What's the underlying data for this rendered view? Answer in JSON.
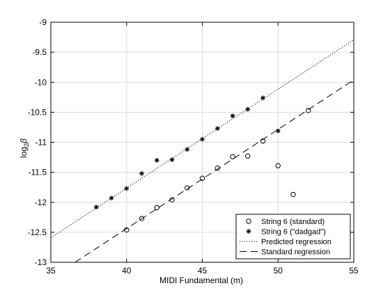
{
  "chart_data": {
    "type": "scatter",
    "title": "",
    "xlabel": "MIDI Fundamental (m)",
    "ylabel_base": "log",
    "ylabel_sub": "2",
    "ylabel_symbol": "β",
    "xlim": [
      35,
      55
    ],
    "ylim": [
      -13,
      -9
    ],
    "xticks": [
      35,
      40,
      45,
      50,
      55
    ],
    "yticks": [
      -13,
      -12.5,
      -12,
      -11.5,
      -11,
      -10.5,
      -10,
      -9.5,
      -9
    ],
    "xtick_labels": [
      "35",
      "40",
      "45",
      "50",
      "55"
    ],
    "ytick_labels": [
      "-13",
      "-12.5",
      "-12",
      "-11.5",
      "-11",
      "-10.5",
      "-10",
      "-9.5",
      "-9"
    ],
    "grid": true,
    "legend_position": "bottom-right",
    "series": [
      {
        "name": "String 6 (standard)",
        "marker": "circle",
        "points": [
          [
            40,
            -12.46
          ],
          [
            41,
            -12.27
          ],
          [
            42,
            -12.09
          ],
          [
            43,
            -11.96
          ],
          [
            44,
            -11.76
          ],
          [
            45,
            -11.6
          ],
          [
            46,
            -11.43
          ],
          [
            47,
            -11.24
          ],
          [
            48,
            -11.23
          ],
          [
            49,
            -10.98
          ],
          [
            50,
            -11.39
          ],
          [
            51,
            -11.87
          ],
          [
            52,
            -10.47
          ]
        ]
      },
      {
        "name": "String 6 (\"dadgad\")",
        "marker": "star",
        "points": [
          [
            38,
            -12.08
          ],
          [
            39,
            -11.93
          ],
          [
            40,
            -11.77
          ],
          [
            41,
            -11.52
          ],
          [
            42,
            -11.3
          ],
          [
            43,
            -11.29
          ],
          [
            44,
            -11.12
          ],
          [
            45,
            -10.95
          ],
          [
            46,
            -10.77
          ],
          [
            47,
            -10.56
          ],
          [
            48,
            -10.45
          ],
          [
            49,
            -10.26
          ],
          [
            50,
            -10.81
          ]
        ]
      },
      {
        "name": "Predicted regression",
        "line_style": "dotted",
        "line": [
          [
            35,
            -12.59
          ],
          [
            55,
            -9.29
          ]
        ]
      },
      {
        "name": "Standard regression",
        "line_style": "dashed",
        "line": [
          [
            36.6,
            -13
          ],
          [
            55,
            -9.96
          ]
        ]
      }
    ]
  }
}
